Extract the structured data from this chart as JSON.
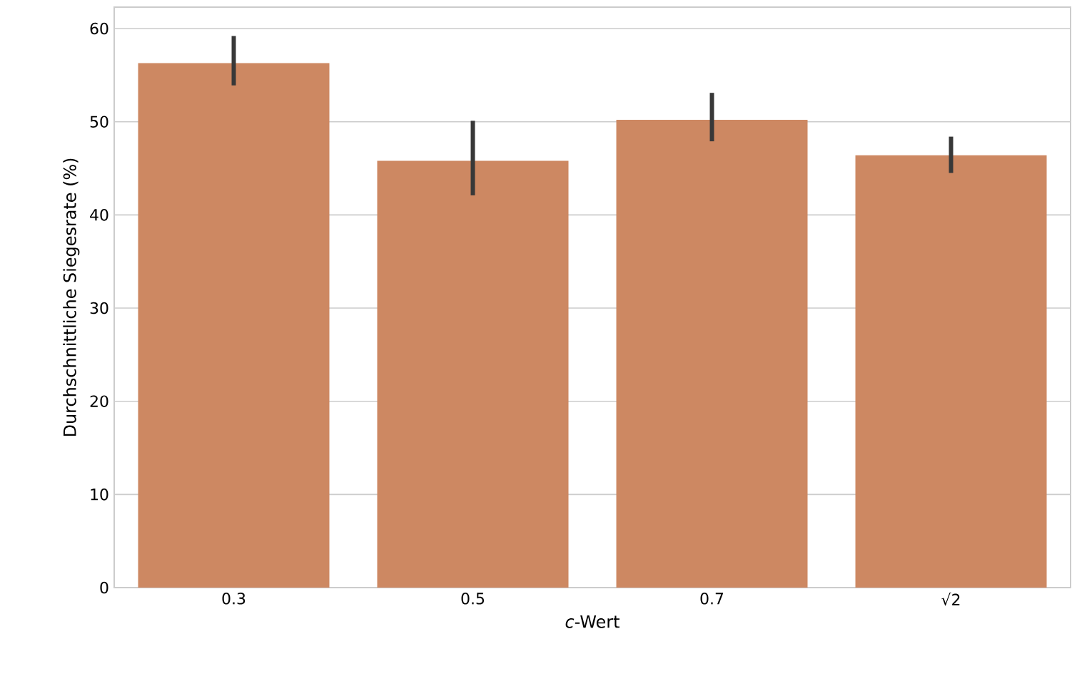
{
  "chart_data": {
    "type": "bar",
    "xlabel": "*c*-Wert",
    "ylabel": "Durchschnittliche Siegesrate (%)",
    "categories": [
      "0.3",
      "0.5",
      "0.7",
      "√2"
    ],
    "values": [
      56.3,
      45.8,
      50.2,
      46.4
    ],
    "errors": [
      [
        53.9,
        59.2
      ],
      [
        42.1,
        50.1
      ],
      [
        47.9,
        53.1
      ],
      [
        44.5,
        48.4
      ]
    ],
    "color": "#cd8862",
    "ylim": [
      0,
      62.3
    ],
    "yticks": [
      0,
      10,
      20,
      30,
      40,
      50,
      60
    ],
    "grid": "y"
  }
}
